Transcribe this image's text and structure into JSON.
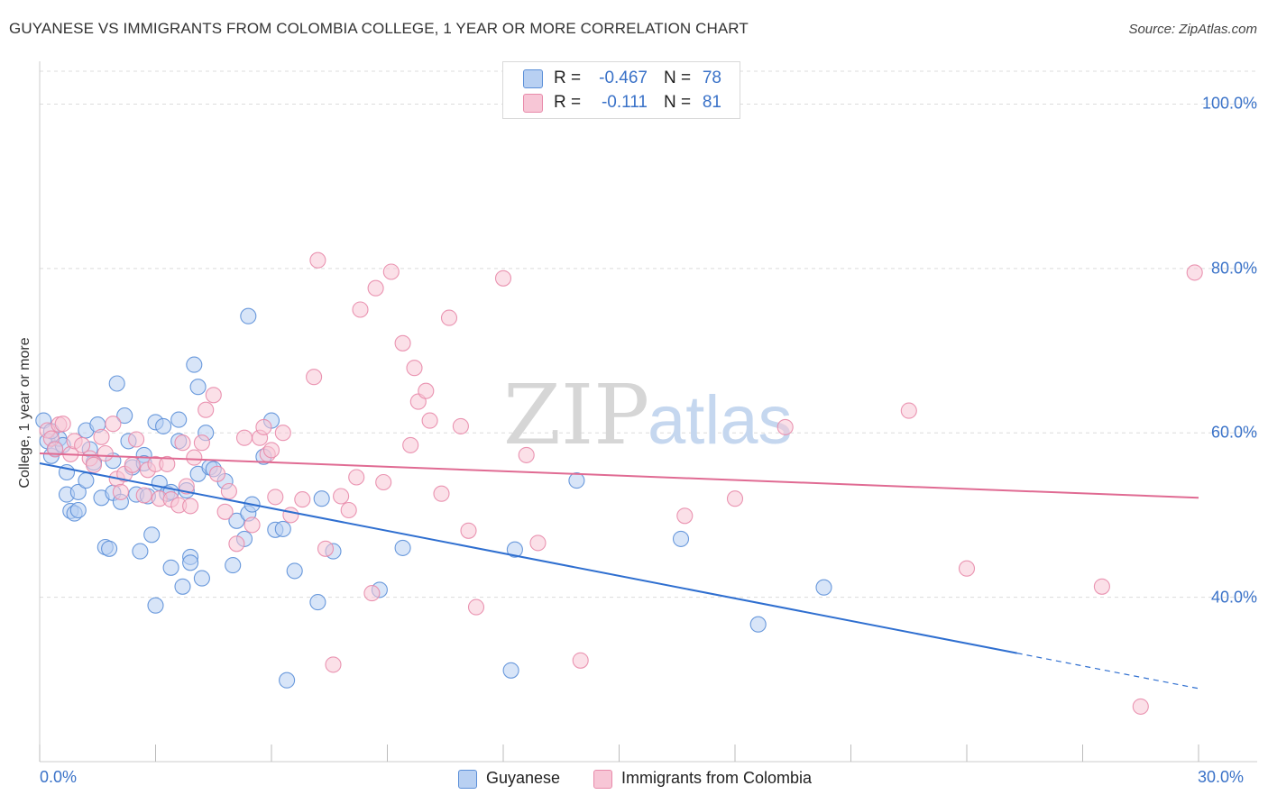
{
  "title": "GUYANESE VS IMMIGRANTS FROM COLOMBIA COLLEGE, 1 YEAR OR MORE CORRELATION CHART",
  "source": "Source: ZipAtlas.com",
  "watermark": {
    "zip": "ZIP",
    "atlas": "atlas"
  },
  "legend_top": [
    {
      "r_label": "R =",
      "r_value": "-0.467",
      "n_label": "N =",
      "n_value": "78"
    },
    {
      "r_label": "R =",
      "r_value": "-0.111",
      "n_label": "N =",
      "n_value": "81"
    }
  ],
  "chart_data": {
    "type": "scatter",
    "title": "GUYANESE VS IMMIGRANTS FROM COLOMBIA COLLEGE, 1 YEAR OR MORE CORRELATION CHART",
    "xlabel": "",
    "ylabel": "College, 1 year or more",
    "xlim": [
      0,
      30
    ],
    "ylim": [
      20,
      104
    ],
    "x_tick_labels": [
      "0.0%",
      "30.0%"
    ],
    "y_ticks": [
      40,
      60,
      80,
      100
    ],
    "y_tick_labels": [
      "40.0%",
      "60.0%",
      "80.0%",
      "100.0%"
    ],
    "grid": true,
    "legend_position": "bottom",
    "series": [
      {
        "name": "Guyanese",
        "color": "#5b8fd8",
        "fill": "#b8d0f2",
        "trend": {
          "x0": 0,
          "y0": 56.3,
          "x1": 25.3,
          "y1": 33.2,
          "dash_to_x": 30,
          "dash_to_y": 28.9,
          "color": "#2f6fd0"
        },
        "points": [
          [
            0.1,
            61.5
          ],
          [
            0.2,
            59.0
          ],
          [
            0.3,
            57.2
          ],
          [
            0.4,
            58.1
          ],
          [
            0.5,
            59.3
          ],
          [
            0.6,
            58.5
          ],
          [
            0.7,
            55.2
          ],
          [
            0.7,
            52.5
          ],
          [
            0.8,
            50.5
          ],
          [
            0.9,
            50.2
          ],
          [
            1.0,
            50.6
          ],
          [
            1.0,
            52.8
          ],
          [
            1.2,
            54.2
          ],
          [
            1.2,
            60.3
          ],
          [
            1.3,
            58.0
          ],
          [
            1.4,
            56.4
          ],
          [
            1.5,
            61.0
          ],
          [
            1.6,
            52.1
          ],
          [
            1.7,
            46.1
          ],
          [
            1.8,
            45.9
          ],
          [
            1.9,
            56.6
          ],
          [
            1.9,
            52.7
          ],
          [
            2.0,
            66.0
          ],
          [
            2.1,
            51.6
          ],
          [
            2.2,
            62.1
          ],
          [
            2.3,
            59.0
          ],
          [
            2.4,
            55.8
          ],
          [
            2.5,
            52.5
          ],
          [
            2.6,
            45.6
          ],
          [
            2.7,
            57.3
          ],
          [
            2.7,
            56.3
          ],
          [
            2.8,
            52.3
          ],
          [
            2.9,
            47.6
          ],
          [
            3.0,
            39.0
          ],
          [
            3.0,
            61.3
          ],
          [
            3.1,
            53.9
          ],
          [
            3.2,
            60.8
          ],
          [
            3.3,
            52.6
          ],
          [
            3.4,
            52.8
          ],
          [
            3.4,
            43.6
          ],
          [
            3.6,
            59.0
          ],
          [
            3.6,
            61.6
          ],
          [
            3.7,
            41.3
          ],
          [
            3.8,
            53.0
          ],
          [
            3.9,
            44.9
          ],
          [
            3.9,
            44.2
          ],
          [
            4.0,
            68.3
          ],
          [
            4.1,
            65.6
          ],
          [
            4.1,
            55.0
          ],
          [
            4.2,
            42.3
          ],
          [
            4.3,
            60.0
          ],
          [
            4.4,
            55.8
          ],
          [
            4.5,
            55.6
          ],
          [
            4.8,
            54.1
          ],
          [
            5.0,
            43.9
          ],
          [
            5.1,
            49.3
          ],
          [
            5.3,
            47.1
          ],
          [
            5.4,
            50.2
          ],
          [
            5.4,
            74.2
          ],
          [
            5.5,
            51.3
          ],
          [
            5.8,
            57.1
          ],
          [
            6.0,
            61.5
          ],
          [
            6.1,
            48.2
          ],
          [
            6.3,
            48.3
          ],
          [
            6.6,
            43.2
          ],
          [
            7.2,
            39.4
          ],
          [
            7.3,
            52.0
          ],
          [
            7.6,
            45.6
          ],
          [
            8.8,
            40.9
          ],
          [
            9.4,
            46.0
          ],
          [
            12.2,
            31.1
          ],
          [
            12.3,
            45.8
          ],
          [
            13.9,
            54.2
          ],
          [
            16.6,
            47.1
          ],
          [
            18.6,
            36.7
          ],
          [
            20.3,
            41.2
          ],
          [
            6.4,
            29.9
          ],
          [
            0.3,
            60.2
          ]
        ]
      },
      {
        "name": "Immigrants from Colombia",
        "color": "#e88aaa",
        "fill": "#f7c6d6",
        "trend": {
          "x0": 0,
          "y0": 57.5,
          "x1": 30,
          "y1": 52.1,
          "color": "#e06b93"
        },
        "points": [
          [
            0.2,
            60.3
          ],
          [
            0.3,
            59.3
          ],
          [
            0.4,
            58.0
          ],
          [
            0.5,
            61.0
          ],
          [
            0.6,
            61.1
          ],
          [
            0.8,
            57.4
          ],
          [
            0.9,
            59.0
          ],
          [
            1.1,
            58.5
          ],
          [
            1.3,
            56.9
          ],
          [
            1.4,
            56.1
          ],
          [
            1.6,
            59.5
          ],
          [
            1.7,
            57.5
          ],
          [
            1.9,
            61.1
          ],
          [
            2.0,
            54.4
          ],
          [
            2.1,
            52.8
          ],
          [
            2.2,
            55.0
          ],
          [
            2.4,
            56.1
          ],
          [
            2.5,
            59.2
          ],
          [
            2.7,
            52.4
          ],
          [
            2.8,
            55.5
          ],
          [
            3.0,
            56.2
          ],
          [
            3.1,
            52.0
          ],
          [
            3.3,
            56.2
          ],
          [
            3.4,
            51.9
          ],
          [
            3.6,
            51.2
          ],
          [
            3.7,
            58.8
          ],
          [
            3.8,
            53.5
          ],
          [
            3.9,
            51.1
          ],
          [
            4.0,
            57.0
          ],
          [
            4.2,
            58.8
          ],
          [
            4.3,
            62.8
          ],
          [
            4.5,
            64.6
          ],
          [
            4.6,
            55.0
          ],
          [
            4.8,
            50.4
          ],
          [
            4.9,
            52.9
          ],
          [
            5.1,
            46.5
          ],
          [
            5.3,
            59.4
          ],
          [
            5.5,
            48.8
          ],
          [
            5.7,
            59.4
          ],
          [
            5.8,
            60.7
          ],
          [
            5.9,
            57.4
          ],
          [
            6.0,
            57.9
          ],
          [
            6.1,
            52.2
          ],
          [
            6.3,
            60.0
          ],
          [
            6.5,
            50.0
          ],
          [
            6.8,
            51.9
          ],
          [
            7.1,
            66.8
          ],
          [
            7.2,
            81.0
          ],
          [
            7.4,
            45.9
          ],
          [
            7.6,
            31.8
          ],
          [
            7.8,
            52.3
          ],
          [
            8.0,
            50.6
          ],
          [
            8.2,
            54.6
          ],
          [
            8.3,
            75.0
          ],
          [
            8.6,
            40.5
          ],
          [
            8.7,
            77.6
          ],
          [
            8.9,
            54.0
          ],
          [
            9.1,
            79.6
          ],
          [
            9.4,
            70.9
          ],
          [
            9.6,
            58.5
          ],
          [
            9.7,
            67.9
          ],
          [
            9.8,
            63.8
          ],
          [
            10.0,
            65.1
          ],
          [
            10.1,
            61.5
          ],
          [
            10.4,
            52.6
          ],
          [
            10.6,
            74.0
          ],
          [
            10.9,
            60.8
          ],
          [
            11.1,
            48.1
          ],
          [
            11.3,
            38.8
          ],
          [
            12.0,
            78.8
          ],
          [
            12.6,
            57.3
          ],
          [
            12.9,
            46.6
          ],
          [
            14.0,
            32.3
          ],
          [
            16.7,
            49.9
          ],
          [
            18.0,
            52.0
          ],
          [
            19.3,
            60.7
          ],
          [
            22.5,
            62.7
          ],
          [
            24.0,
            43.5
          ],
          [
            27.5,
            41.3
          ],
          [
            28.5,
            26.7
          ],
          [
            29.9,
            79.5
          ]
        ]
      }
    ]
  },
  "legend_bottom": [
    "Guyanese",
    "Immigrants from Colombia"
  ],
  "x_tick_left": "0.0%",
  "x_tick_right": "30.0%"
}
